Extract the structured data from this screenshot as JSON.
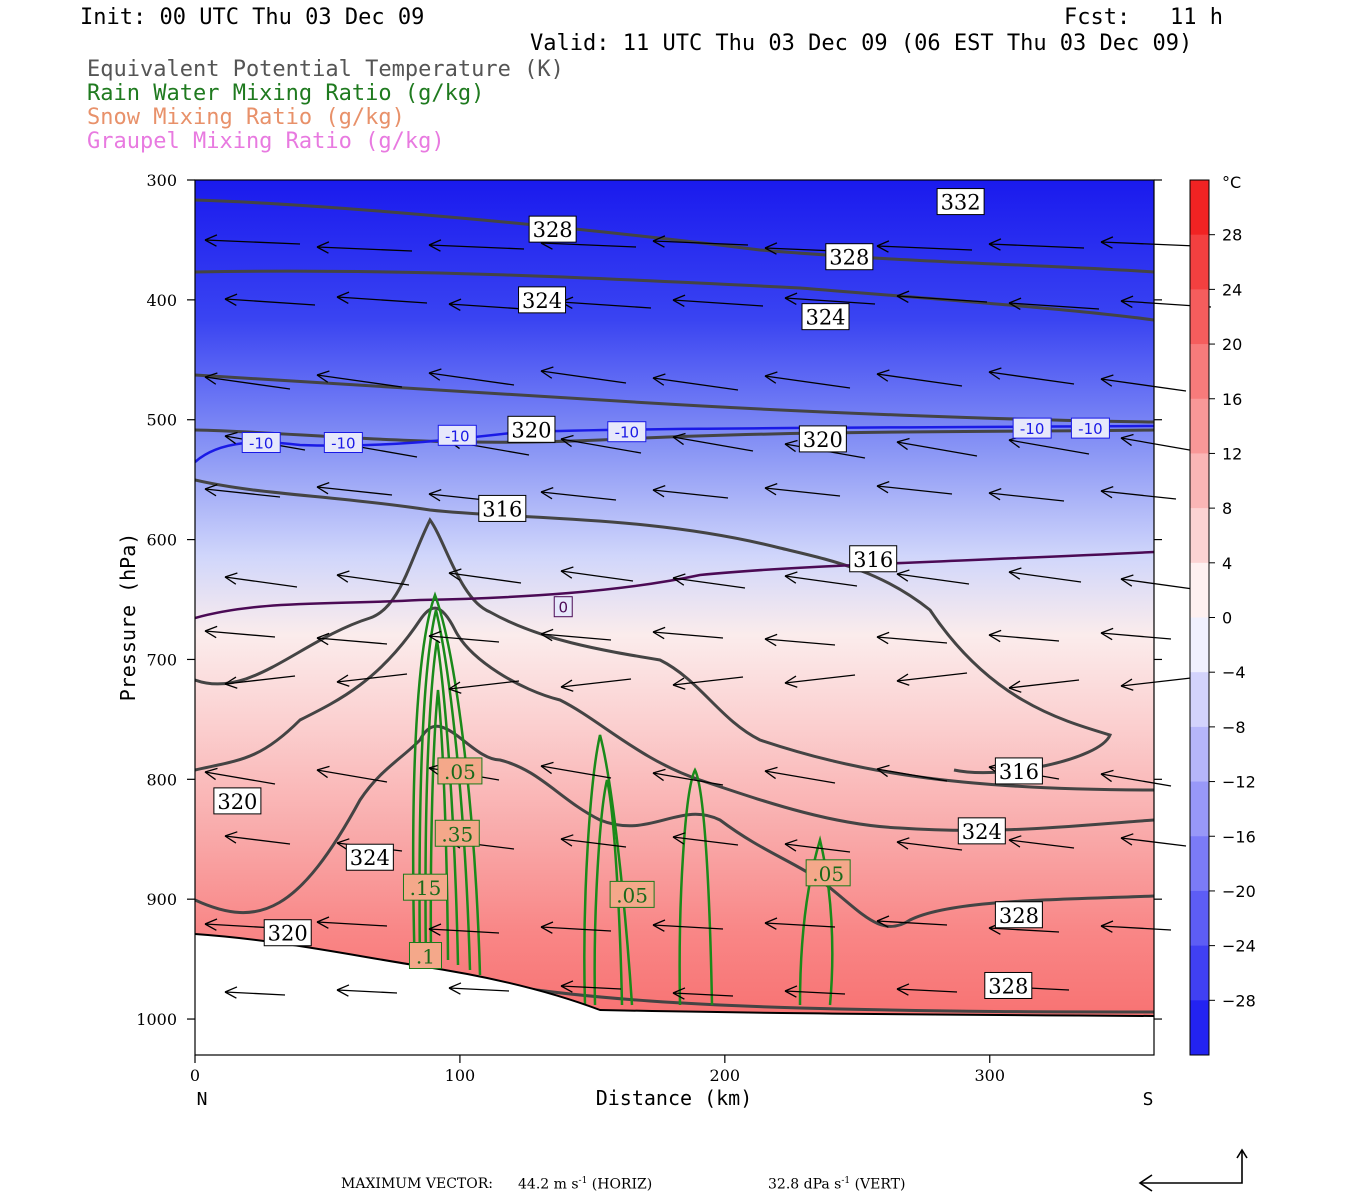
{
  "header": {
    "init": "Init: 00 UTC Thu 03 Dec 09",
    "fcst": "Fcst:   11 h",
    "valid": "Valid: 11 UTC Thu 03 Dec 09 (06 EST Thu 03 Dec 09)"
  },
  "legend": [
    {
      "label": "Equivalent Potential Temperature (K)",
      "color": "#555555"
    },
    {
      "label": "Rain Water Mixing Ratio (g/kg)",
      "color": "#1f7a1f"
    },
    {
      "label": "Snow Mixing Ratio (g/kg)",
      "color": "#e8916a"
    },
    {
      "label": "Graupel Mixing Ratio (g/kg)",
      "color": "#e87ae0"
    }
  ],
  "colorbar": {
    "unit": "°C",
    "ticks": [
      "28",
      "24",
      "20",
      "16",
      "12",
      "8",
      "4",
      "0",
      "−4",
      "−8",
      "−12",
      "−16",
      "−20",
      "−24",
      "−28"
    ]
  },
  "footer": {
    "label": "MAXIMUM VECTOR:",
    "horiz_value": "44.2 m s",
    "horiz_exp": "-1",
    "horiz_tag": "(HORIZ)",
    "vert_value": "32.8 dPa s",
    "vert_exp": "-1",
    "vert_tag": "(VERT)"
  },
  "chart_data": {
    "type": "cross-section",
    "xlabel": "Distance (km)",
    "ylabel": "Pressure (hPa)",
    "xlim": [
      0,
      362
    ],
    "ylim": [
      1030,
      300
    ],
    "x_ticks": [
      "0",
      "100",
      "200",
      "300"
    ],
    "y_ticks": [
      "300",
      "400",
      "500",
      "600",
      "700",
      "800",
      "900",
      "1000"
    ],
    "x_end_labels": {
      "left": "N",
      "right": "S"
    },
    "shading": {
      "variable": "Temperature",
      "unit": "°C",
      "range": [
        -32,
        32
      ]
    },
    "theta_e_labels": [
      {
        "text": "332",
        "x": 289,
        "p": 318
      },
      {
        "text": "328",
        "x": 135,
        "p": 341
      },
      {
        "text": "328",
        "x": 247,
        "p": 364
      },
      {
        "text": "324",
        "x": 131,
        "p": 400
      },
      {
        "text": "324",
        "x": 238,
        "p": 414
      },
      {
        "text": "320",
        "x": 127,
        "p": 508
      },
      {
        "text": "320",
        "x": 237,
        "p": 516
      },
      {
        "text": "316",
        "x": 116,
        "p": 574
      },
      {
        "text": "316",
        "x": 256,
        "p": 616
      },
      {
        "text": "316",
        "x": 311,
        "p": 793
      },
      {
        "text": "320",
        "x": 16,
        "p": 818
      },
      {
        "text": "324",
        "x": 66,
        "p": 865
      },
      {
        "text": "324",
        "x": 297,
        "p": 843
      },
      {
        "text": "328",
        "x": 311,
        "p": 913
      },
      {
        "text": "328",
        "x": 307,
        "p": 972
      },
      {
        "text": "320",
        "x": 35,
        "p": 928
      }
    ],
    "temp_labels": [
      {
        "text": "-10",
        "x": 25,
        "p": 519,
        "color": "#1a1ae6"
      },
      {
        "text": "-10",
        "x": 56,
        "p": 519,
        "color": "#1a1ae6"
      },
      {
        "text": "-10",
        "x": 99,
        "p": 513,
        "color": "#1a1ae6"
      },
      {
        "text": "-10",
        "x": 163,
        "p": 510,
        "color": "#1a1ae6"
      },
      {
        "text": "-10",
        "x": 316,
        "p": 507,
        "color": "#1a1ae6"
      },
      {
        "text": "-10",
        "x": 338,
        "p": 507,
        "color": "#1a1ae6"
      },
      {
        "text": "0",
        "x": 139,
        "p": 656,
        "color": "#4b0a55"
      }
    ],
    "rain_labels": [
      {
        "text": ".05",
        "x": 100,
        "p": 793
      },
      {
        "text": ".35",
        "x": 99,
        "p": 845
      },
      {
        "text": ".15",
        "x": 87,
        "p": 890
      },
      {
        "text": ".1",
        "x": 87,
        "p": 947
      },
      {
        "text": ".05",
        "x": 165,
        "p": 896
      },
      {
        "text": ".05",
        "x": 239,
        "p": 878
      }
    ]
  }
}
